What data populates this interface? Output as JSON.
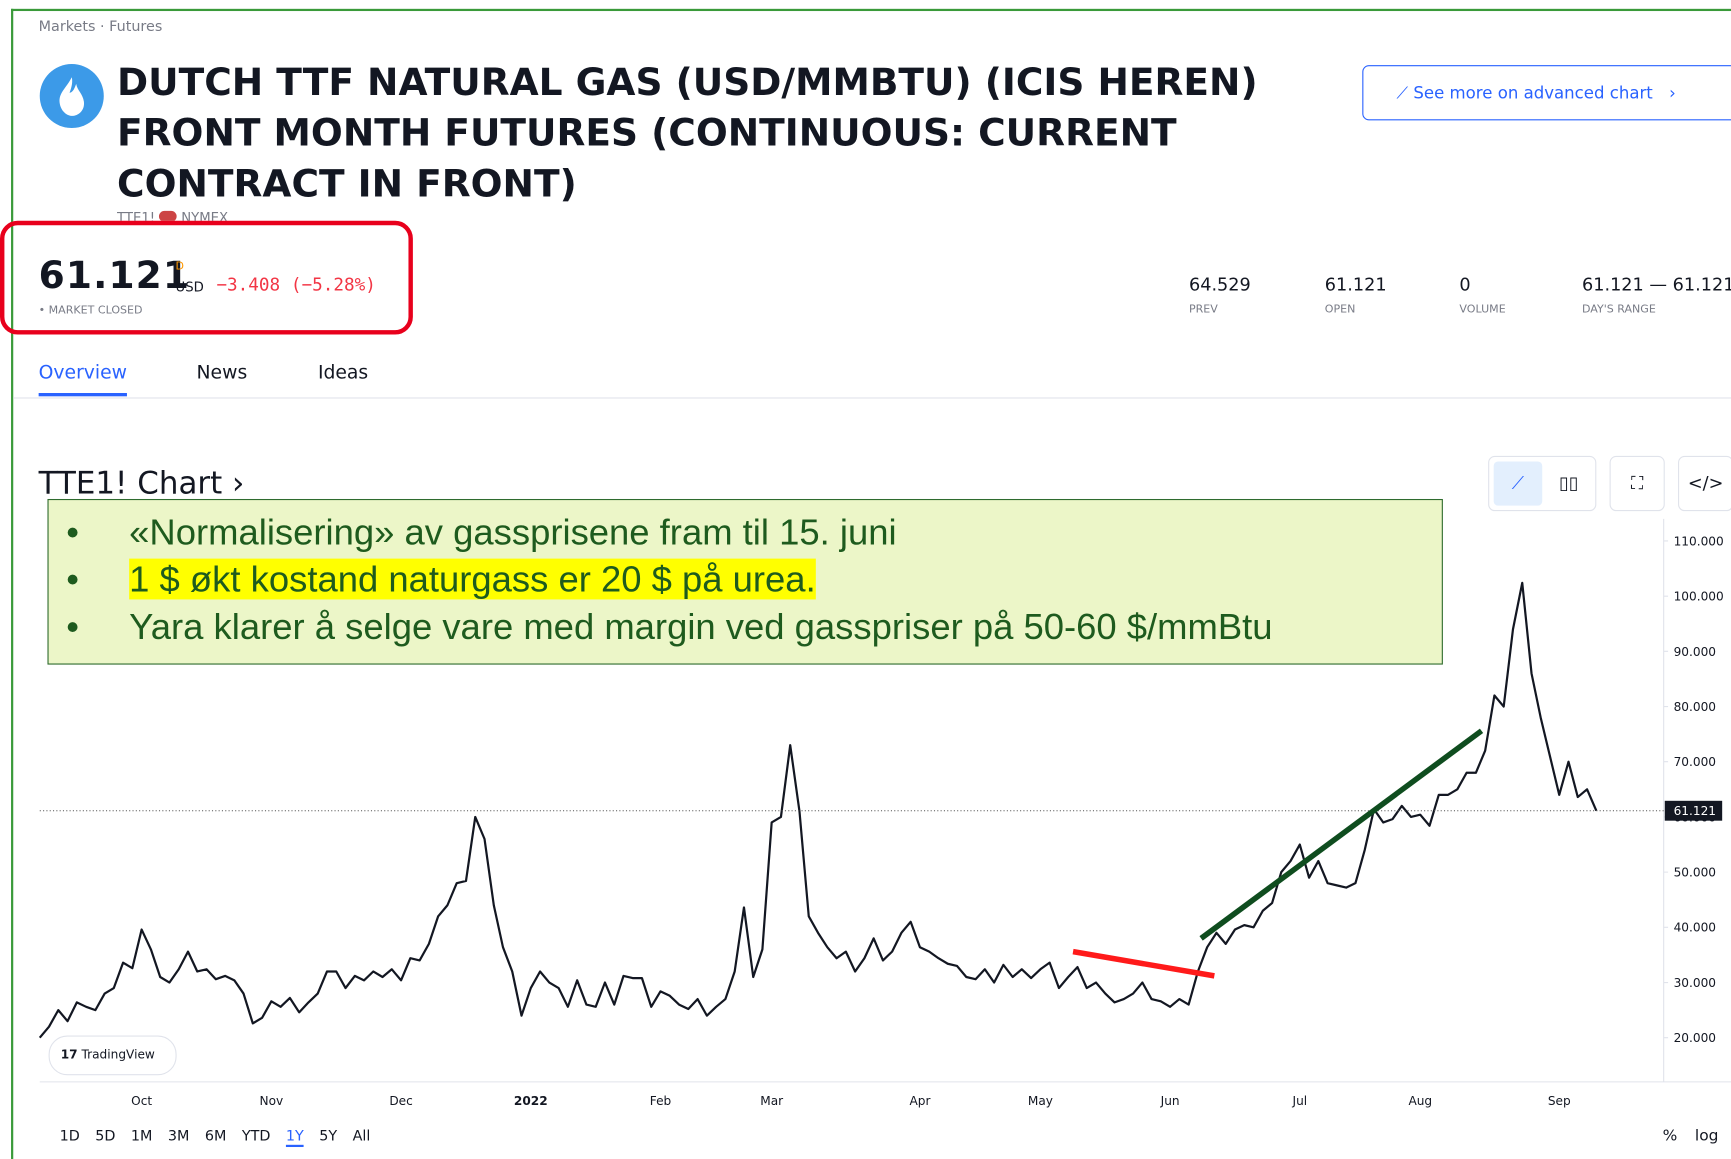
{
  "breadcrumb": "Markets · Futures",
  "title": "DUTCH TTF NATURAL GAS (USD/MMBTU) (ICIS HEREN) FRONT MONTH FUTURES (CONTINUOUS: CURRENT CONTRACT IN FRONT)",
  "symbol": "TTE1!",
  "exchange": "NYMEX",
  "advanced_button": "See more on advanced chart",
  "price": {
    "value": "61.121",
    "flag": "D",
    "currency": "USD",
    "change": "−3.408 (−5.28%)",
    "status": "MARKET CLOSED"
  },
  "stats": [
    {
      "value": "64.529",
      "label": "PREV"
    },
    {
      "value": "61.121",
      "label": "OPEN"
    },
    {
      "value": "0",
      "label": "VOLUME"
    },
    {
      "value": "61.121 — 61.121",
      "label": "DAY'S RANGE"
    }
  ],
  "tabs": [
    "Overview",
    "News",
    "Ideas"
  ],
  "chart_header": "TTE1! Chart ›",
  "callout": [
    "«Normalisering» av gassprisene fram til 15. juni",
    "1 $ økt kostand naturgass er 20 $ på urea.",
    "Yara klarer å selge vare med margin ved gasspriser på 50-60 $/mmBtu"
  ],
  "logo": "TradingView",
  "ranges": [
    "1D",
    "5D",
    "1M",
    "3M",
    "6M",
    "YTD",
    "1Y",
    "5Y",
    "All"
  ],
  "scale_options": [
    "%",
    "log"
  ],
  "chart_data": {
    "type": "line",
    "color": "#131722",
    "grid": false,
    "categories": [
      null,
      null,
      null,
      null,
      null,
      null,
      null,
      null,
      null,
      null,
      null,
      "Oct",
      null,
      null,
      null,
      null,
      null,
      null,
      null,
      null,
      null,
      null,
      null,
      null,
      null,
      "Nov",
      null,
      null,
      null,
      null,
      null,
      null,
      null,
      null,
      null,
      null,
      null,
      null,
      null,
      "Dec",
      null,
      null,
      null,
      null,
      null,
      null,
      null,
      null,
      null,
      null,
      null,
      null,
      null,
      "2022",
      null,
      null,
      null,
      null,
      null,
      null,
      null,
      null,
      null,
      null,
      null,
      null,
      null,
      "Feb",
      null,
      null,
      null,
      null,
      null,
      null,
      null,
      null,
      null,
      null,
      null,
      "Mar",
      null,
      null,
      null,
      null,
      null,
      null,
      null,
      null,
      null,
      null,
      null,
      null,
      null,
      null,
      null,
      "Apr",
      null,
      null,
      null,
      null,
      null,
      null,
      null,
      null,
      null,
      null,
      null,
      null,
      "May",
      null,
      null,
      null,
      null,
      null,
      null,
      null,
      null,
      null,
      null,
      null,
      null,
      null,
      "Jun",
      null,
      null,
      null,
      null,
      null,
      null,
      null,
      null,
      null,
      null,
      null,
      null,
      null,
      "Jul",
      null,
      null,
      null,
      null,
      null,
      null,
      null,
      null,
      null,
      null,
      null,
      null,
      "Aug",
      null,
      null,
      null,
      null,
      null,
      null,
      null,
      null,
      null,
      null,
      null,
      null,
      null,
      null,
      "Sep",
      null,
      null,
      null,
      null
    ],
    "values": [
      20,
      22,
      25,
      23,
      26.4,
      25.6,
      25,
      28,
      29,
      33.6,
      32.6,
      39.6,
      36,
      31,
      30,
      32.4,
      35.6,
      32,
      32.4,
      30.6,
      31.2,
      30.4,
      28,
      22.6,
      23.6,
      26.6,
      25.6,
      27.2,
      24.6,
      26.4,
      28,
      32,
      32,
      29,
      31.2,
      30.4,
      32,
      31,
      32.4,
      30.4,
      34.4,
      34,
      37,
      42,
      44,
      48,
      48.4,
      60,
      56,
      44,
      36.4,
      32,
      24,
      29,
      32,
      30,
      29,
      25.6,
      30.4,
      26,
      25.6,
      30,
      26,
      31.2,
      30.8,
      30.8,
      25.6,
      28.4,
      27.6,
      26,
      25.2,
      27,
      24,
      25.6,
      27,
      32,
      43.6,
      31,
      36,
      59,
      60,
      73,
      61,
      42,
      39,
      36.4,
      34.4,
      35.6,
      32,
      34.4,
      38,
      34,
      35.6,
      39,
      41,
      36.4,
      35.6,
      34.4,
      33.4,
      33,
      31,
      30.6,
      32.4,
      30,
      33.2,
      31,
      32.4,
      30.8,
      32.4,
      33.6,
      29,
      31,
      32.8,
      29,
      30,
      28,
      26.4,
      27,
      28,
      30,
      27,
      26.6,
      25.6,
      27,
      26,
      32,
      36.4,
      39,
      37,
      39.6,
      40.4,
      40,
      43,
      44.4,
      50,
      52,
      55,
      49,
      52,
      48,
      47.6,
      47.2,
      48,
      54,
      61.4,
      59,
      59.6,
      62,
      60,
      60.4,
      58.4,
      64,
      64,
      65,
      68,
      68,
      72,
      82,
      80,
      94,
      102.4,
      86,
      78,
      71,
      64,
      70,
      63.6,
      65,
      61.121
    ],
    "ylim": [
      12,
      112
    ],
    "yticks": [
      {
        "value": 20,
        "label": "20.000"
      },
      {
        "value": 30,
        "label": "30.000"
      },
      {
        "value": 40,
        "label": "40.000"
      },
      {
        "value": 50,
        "label": "50.000"
      },
      {
        "value": 60,
        "label": "60.000"
      },
      {
        "value": 70,
        "label": "70.000"
      },
      {
        "value": 80,
        "label": "80.000"
      },
      {
        "value": 90,
        "label": "90.000"
      },
      {
        "value": 100,
        "label": "100.000"
      },
      {
        "value": 110,
        "label": "110.000"
      }
    ],
    "last_price": 61.121
  }
}
